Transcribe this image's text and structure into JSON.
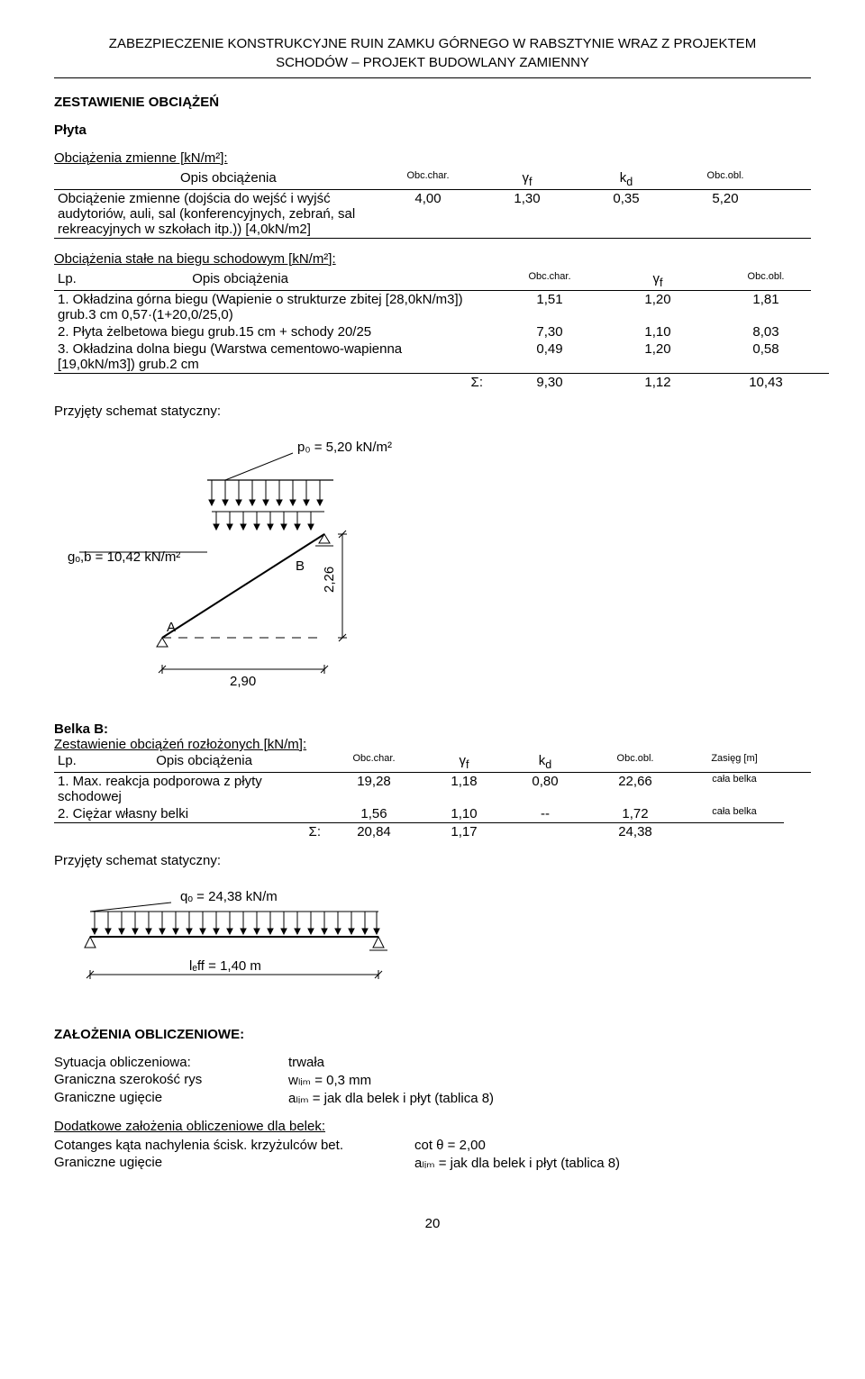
{
  "doc_title_l1": "ZABEZPIECZENIE KONSTRUKCYJNE RUIN ZAMKU GÓRNEGO W RABSZTYNIE WRAZ Z PROJEKTEM",
  "doc_title_l2": "SCHODÓW – PROJEKT BUDOWLANY ZAMIENNY",
  "section_title": "ZESTAWIENIE OBCIĄŻEŃ",
  "plyta_title": "Płyta",
  "var_loads_heading": "Obciążenia zmienne [kN/m²]:",
  "hdr_opis": "Opis obciążenia",
  "hdr_obc_char": "Obc.char.",
  "hdr_gamma": "γ",
  "hdr_gamma_sub": "f",
  "hdr_kd": "k",
  "hdr_kd_sub": "d",
  "hdr_obc_obl": "Obc.obl.",
  "var_row_desc": "Obciążenie zmienne (dojścia do wejść i wyjść audytoriów, auli, sal (konferencyjnych, zebrań, sal rekreacyjnych w szkołach itp.))  [4,0kN/m2]",
  "var_row_char": "4,00",
  "var_row_gf": "1,30",
  "var_row_kd": "0,35",
  "var_row_obl": "5,20",
  "const_loads_heading": "Obciążenia stałe na biegu schodowym [kN/m²]:",
  "hdr_lp": "Lp.",
  "const_rows": [
    {
      "lp": "1.",
      "desc": "Okładzina górna biegu (Wapienie o strukturze zbitej [28,0kN/m3]) grub.3 cm 0,57·(1+20,0/25,0)",
      "char": "1,51",
      "gf": "1,20",
      "obl": "1,81"
    },
    {
      "lp": "2.",
      "desc": "Płyta żelbetowa biegu grub.15 cm + schody 20/25",
      "char": "7,30",
      "gf": "1,10",
      "obl": "8,03"
    },
    {
      "lp": "3.",
      "desc": "Okładzina dolna biegu (Warstwa cementowo-wapienna [19,0kN/m3]) grub.2 cm",
      "char": "0,49",
      "gf": "1,20",
      "obl": "0,58"
    }
  ],
  "sigma": "Σ:",
  "const_sum_char": "9,30",
  "const_sum_gf": "1,12",
  "const_sum_obl": "10,43",
  "schemat_label": "Przyjęty schemat statyczny:",
  "diagram1": {
    "po_label": "p₀ = 5,20 kN/m²",
    "gob_label": "gₒ,b = 10,42 kN/m²",
    "A": "A",
    "B": "B",
    "h_dim": "2,26",
    "w_dim": "2,90",
    "color": "#000000"
  },
  "belka_title": "Belka B:",
  "belka_sub": "Zestawienie obciążeń rozłożonych [kN/m]:",
  "hdr_zasieg": "Zasięg [m]",
  "belka_rows": [
    {
      "lp": "1.",
      "desc": "Max. reakcja podporowa z płyty schodowej",
      "char": "19,28",
      "gf": "1,18",
      "kd": "0,80",
      "obl": "22,66",
      "z": "cała belka"
    },
    {
      "lp": "2.",
      "desc": "Ciężar własny belki",
      "char": "1,56",
      "gf": "1,10",
      "kd": "--",
      "obl": "1,72",
      "z": "cała belka"
    }
  ],
  "belka_sum_char": "20,84",
  "belka_sum_gf": "1,17",
  "belka_sum_obl": "24,38",
  "diagram2": {
    "qo_label": "qₒ = 24,38 kN/m",
    "leff_label": "lₑff = 1,40 m",
    "color": "#000000"
  },
  "assump_title": "ZAŁOŻENIA OBLICZENIOWE:",
  "assump_rows": [
    {
      "lbl": "Sytuacja obliczeniowa:",
      "val": "trwała"
    },
    {
      "lbl": "Graniczna szerokość rys",
      "val": "wₗᵢₘ = 0,3 mm"
    },
    {
      "lbl": "Graniczne ugięcie",
      "val": "aₗᵢₘ = jak dla belek i płyt (tablica 8)"
    }
  ],
  "assump2_title": "Dodatkowe założenia obliczeniowe dla belek:",
  "assump2_rows": [
    {
      "lbl": "Cotanges kąta nachylenia ścisk. krzyżulców bet.",
      "val": "cot θ = 2,00"
    },
    {
      "lbl": "Graniczne ugięcie",
      "val": "aₗᵢₘ = jak dla belek i płyt (tablica 8)"
    }
  ],
  "page_number": "20"
}
